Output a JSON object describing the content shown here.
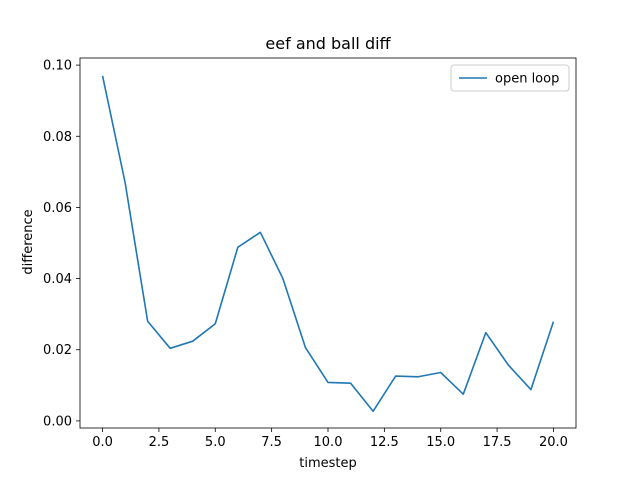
{
  "chart_data": {
    "type": "line",
    "title": "eef and ball diff",
    "xlabel": "timestep",
    "ylabel": "difference",
    "xlim": [
      -1,
      21
    ],
    "ylim": [
      -0.002,
      0.102
    ],
    "xticks": [
      0,
      2.5,
      5,
      7.5,
      10,
      12.5,
      15,
      17.5,
      20
    ],
    "xtick_labels": [
      "0.0",
      "2.5",
      "5.0",
      "7.5",
      "10.0",
      "12.5",
      "15.0",
      "17.5",
      "20.0"
    ],
    "yticks": [
      0.0,
      0.02,
      0.04,
      0.06,
      0.08,
      0.1
    ],
    "ytick_labels": [
      "0.00",
      "0.02",
      "0.04",
      "0.06",
      "0.08",
      "0.10"
    ],
    "grid": false,
    "legend_position": "top-right",
    "series": [
      {
        "name": "open loop",
        "color": "#1f77b4",
        "x": [
          0,
          1,
          2,
          3,
          4,
          5,
          6,
          7,
          8,
          9,
          10,
          11,
          12,
          13,
          14,
          15,
          16,
          17,
          18,
          19,
          20
        ],
        "values": [
          0.097,
          0.067,
          0.028,
          0.0204,
          0.0224,
          0.0273,
          0.0488,
          0.053,
          0.04,
          0.0206,
          0.0108,
          0.0106,
          0.0027,
          0.0126,
          0.0124,
          0.0136,
          0.0075,
          0.0248,
          0.0157,
          0.0088,
          0.0279
        ]
      }
    ]
  }
}
